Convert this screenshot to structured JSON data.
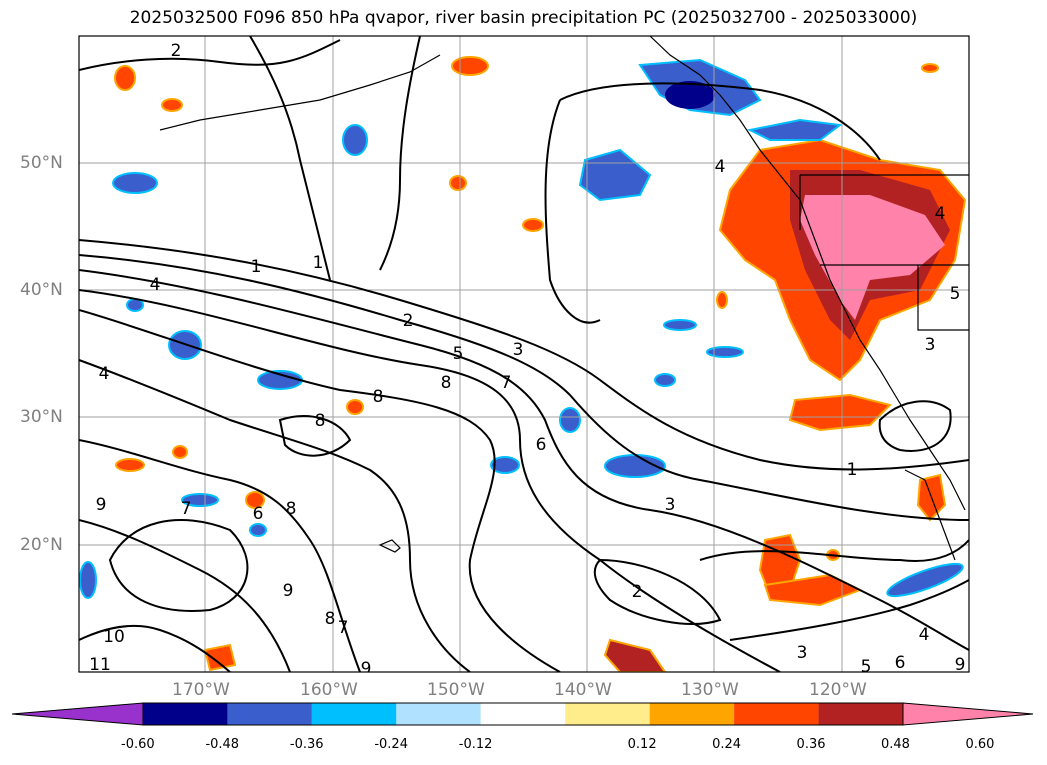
{
  "title": "2025032500 F096 850 hPa qvapor, river basin precipitation PC (2025032700 - 2025033000)",
  "map": {
    "lat_labels": [
      "50°N",
      "40°N",
      "30°N",
      "20°N"
    ],
    "lon_labels": [
      "170°W",
      "160°W",
      "150°W",
      "140°W",
      "130°W",
      "120°W"
    ],
    "grid_color": "#a0a0a0",
    "contour_labels": [
      "1",
      "1",
      "1",
      "2",
      "2",
      "2",
      "3",
      "3",
      "3",
      "3",
      "4",
      "4",
      "4",
      "4",
      "4",
      "5",
      "5",
      "5",
      "6",
      "6",
      "6",
      "7",
      "7",
      "7",
      "8",
      "8",
      "8",
      "8",
      "8",
      "9",
      "9",
      "9",
      "9",
      "10",
      "11"
    ]
  },
  "colorbar": {
    "ticks": [
      "-0.60",
      "-0.48",
      "-0.36",
      "-0.24",
      "-0.12",
      "0.12",
      "0.24",
      "0.36",
      "0.48",
      "0.60"
    ],
    "colors": [
      "#9932cc",
      "#00008b",
      "#3a5fcd",
      "#00bfff",
      "#b0e2ff",
      "#ffffff",
      "#ffec8b",
      "#ffa500",
      "#ff4500",
      "#b22222",
      "#ff82ab"
    ]
  }
}
